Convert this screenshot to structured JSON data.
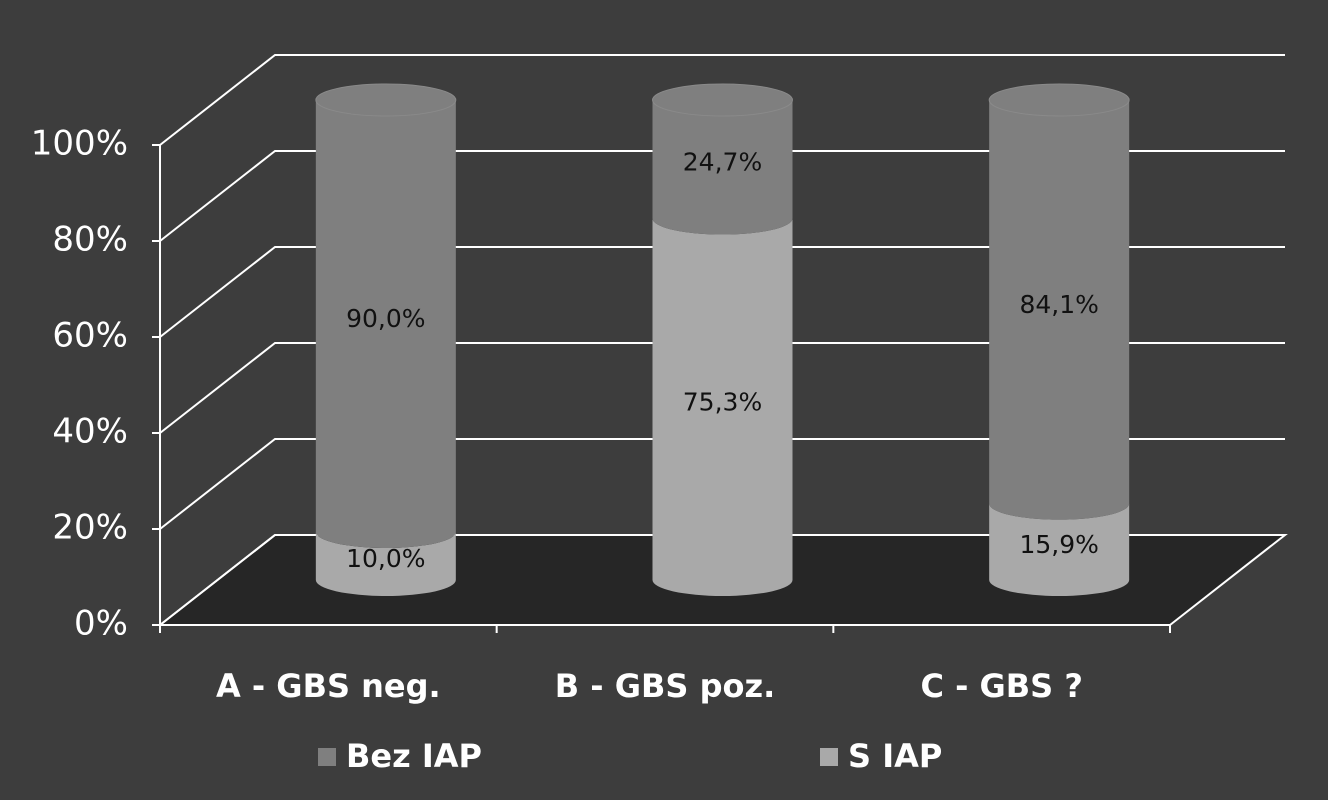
{
  "chart_data": {
    "type": "stacked-cylinder",
    "categories": [
      "A - GBS neg.",
      "B - GBS poz.",
      "C - GBS ?"
    ],
    "series": [
      {
        "name": "Bez IAP",
        "color": "#7f7f7f",
        "values": [
          90.0,
          24.7,
          84.1
        ],
        "value_labels": [
          "90,0%",
          "24,7%",
          "84,1%"
        ]
      },
      {
        "name": "S IAP",
        "color": "#a9a9a9",
        "values": [
          10.0,
          75.3,
          15.9
        ],
        "value_labels": [
          "10,0%",
          "75,3%",
          "15,9%"
        ]
      }
    ],
    "ylim": [
      0,
      100
    ],
    "yticks": [
      {
        "value": 0,
        "label": "0%"
      },
      {
        "value": 20,
        "label": "20%"
      },
      {
        "value": 40,
        "label": "40%"
      },
      {
        "value": 60,
        "label": "60%"
      },
      {
        "value": 80,
        "label": "80%"
      },
      {
        "value": 100,
        "label": "100%"
      }
    ],
    "grid": true,
    "legend": "bottom"
  }
}
